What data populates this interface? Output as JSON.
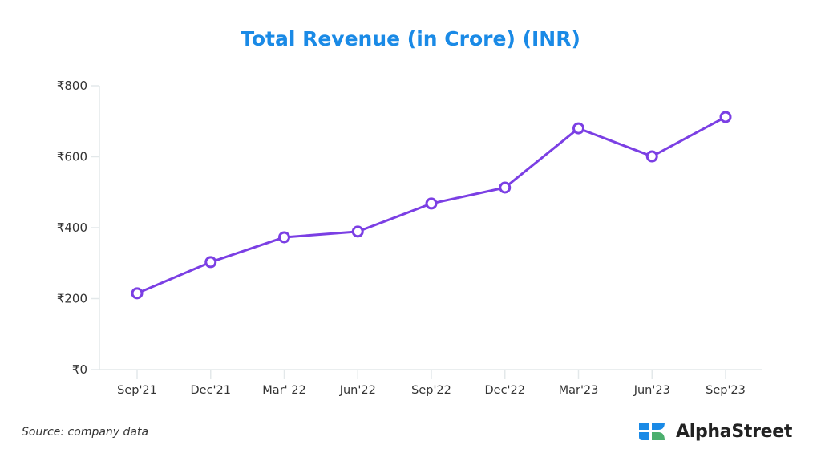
{
  "chart_data": {
    "type": "line",
    "title": "Total Revenue (in Crore) (INR)",
    "xlabel": "",
    "ylabel": "",
    "categories": [
      "Sep'21",
      "Dec'21",
      "Mar' 22",
      "Jun'22",
      "Sep'22",
      "Dec'22",
      "Mar'23",
      "Jun'23",
      "Sep'23"
    ],
    "series": [
      {
        "name": "Total Revenue",
        "values": [
          215,
          303,
          373,
          389,
          468,
          513,
          680,
          601,
          712
        ],
        "color": "#7b3fe4"
      }
    ],
    "ylim": [
      0,
      800
    ],
    "yticks": [
      0,
      200,
      400,
      600,
      800
    ],
    "ytick_labels": [
      "₹0",
      "₹200",
      "₹400",
      "₹600",
      "₹800"
    ],
    "grid": false,
    "legend": "none"
  },
  "footer": {
    "source": "Source: company data",
    "brand": "AlphaStreet",
    "brand_colors": {
      "blue": "#1a8ae6",
      "green": "#4caf6e"
    }
  }
}
